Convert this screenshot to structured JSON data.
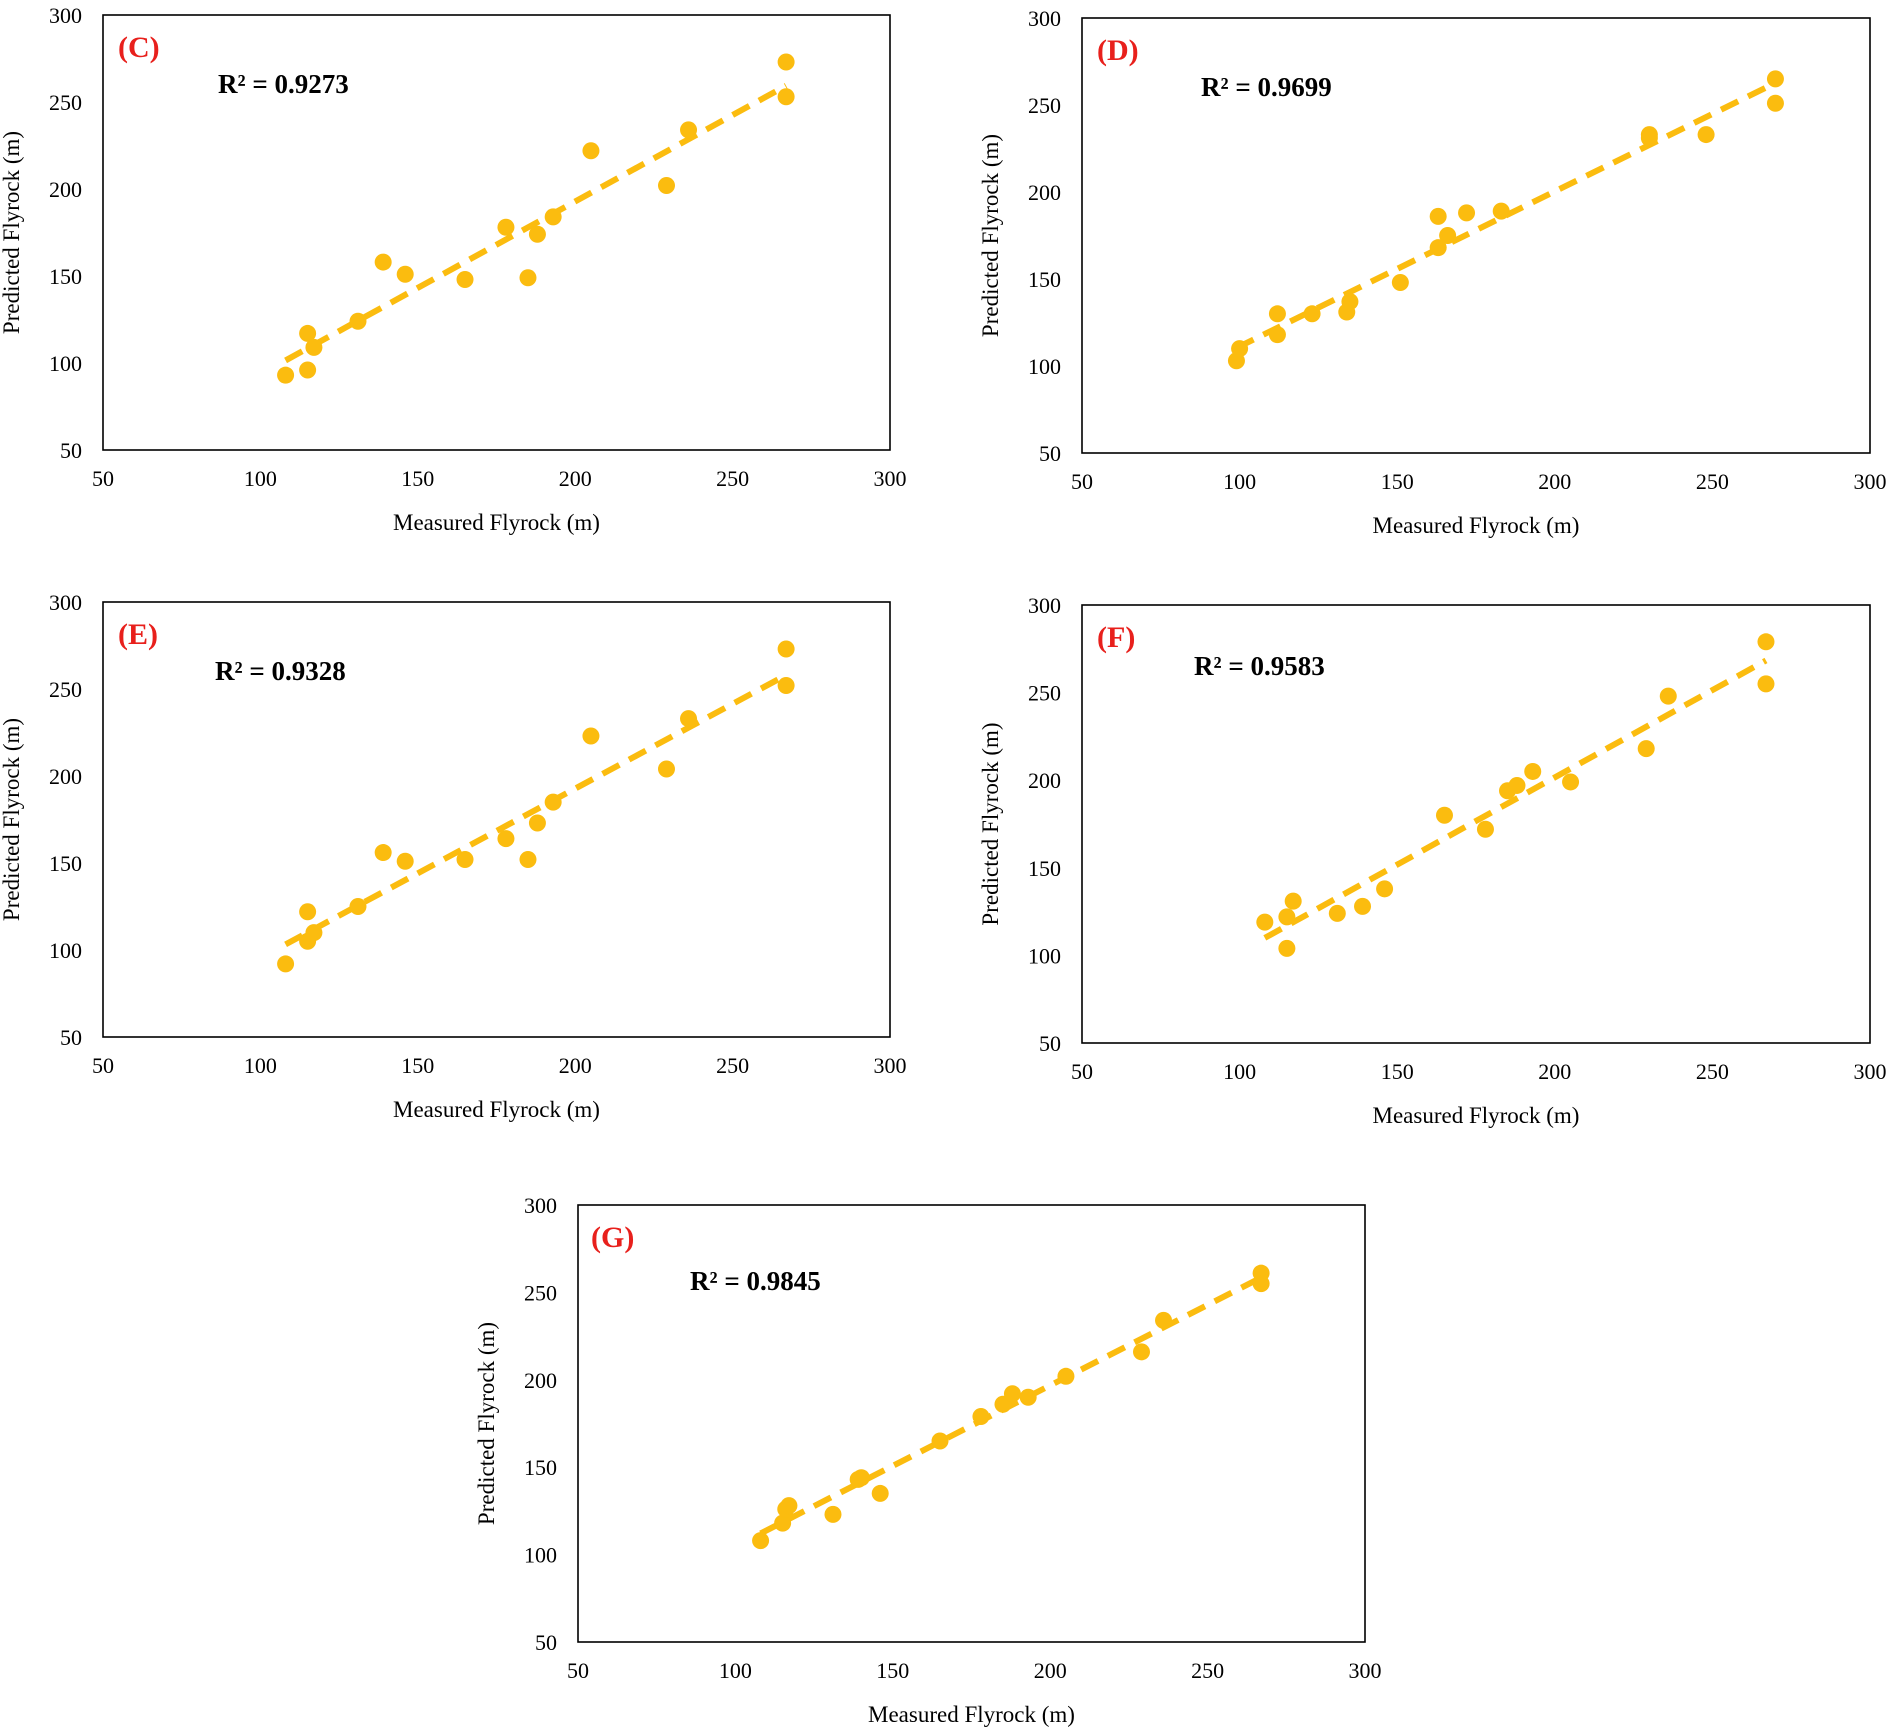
{
  "style": {
    "marker_color": "#fbbc0f",
    "trend_color": "#fbbc0f",
    "panel_label_color": "#e8201c"
  },
  "chart_data": [
    {
      "type": "scatter",
      "panel_label": "(C)",
      "r2": "R² = 0.9273",
      "xlabel": "Measured Flyrock (m)",
      "ylabel": "Predicted Flyrock (m)",
      "xlim": [
        50,
        300
      ],
      "ylim": [
        50,
        300
      ],
      "xticks": [
        "50",
        "100",
        "150",
        "200",
        "250",
        "300"
      ],
      "yticks": [
        "50",
        "100",
        "150",
        "200",
        "250",
        "300"
      ],
      "grid": false,
      "trendline": "dashed linear",
      "points": [
        [
          108,
          93
        ],
        [
          115,
          117
        ],
        [
          115,
          96
        ],
        [
          117,
          109
        ],
        [
          131,
          124
        ],
        [
          139,
          158
        ],
        [
          146,
          151
        ],
        [
          165,
          148
        ],
        [
          178,
          178
        ],
        [
          185,
          149
        ],
        [
          188,
          174
        ],
        [
          193,
          184
        ],
        [
          205,
          222
        ],
        [
          229,
          202
        ],
        [
          236,
          234
        ],
        [
          267,
          273
        ],
        [
          267,
          253
        ]
      ]
    },
    {
      "type": "scatter",
      "panel_label": "(D)",
      "r2": "R² = 0.9699",
      "xlabel": "Measured Flyrock (m)",
      "ylabel": "Predicted Flyrock (m)",
      "xlim": [
        50,
        300
      ],
      "ylim": [
        50,
        300
      ],
      "xticks": [
        "50",
        "100",
        "150",
        "200",
        "250",
        "300"
      ],
      "yticks": [
        "50",
        "100",
        "150",
        "200",
        "250",
        "300"
      ],
      "grid": false,
      "trendline": "dashed linear",
      "points": [
        [
          99,
          103
        ],
        [
          100,
          110
        ],
        [
          112,
          118
        ],
        [
          112,
          130
        ],
        [
          123,
          130
        ],
        [
          134,
          131
        ],
        [
          135,
          137
        ],
        [
          151,
          148
        ],
        [
          163,
          168
        ],
        [
          163,
          186
        ],
        [
          166,
          175
        ],
        [
          172,
          188
        ],
        [
          183,
          189
        ],
        [
          230,
          233
        ],
        [
          230,
          231
        ],
        [
          248,
          233
        ],
        [
          270,
          265
        ],
        [
          270,
          251
        ]
      ]
    },
    {
      "type": "scatter",
      "panel_label": "(E)",
      "r2": "R² = 0.9328",
      "xlabel": "Measured Flyrock (m)",
      "ylabel": "Predicted Flyrock (m)",
      "xlim": [
        50,
        300
      ],
      "ylim": [
        50,
        300
      ],
      "xticks": [
        "50",
        "100",
        "150",
        "200",
        "250",
        "300"
      ],
      "yticks": [
        "50",
        "100",
        "150",
        "200",
        "250",
        "300"
      ],
      "grid": false,
      "trendline": "dashed linear",
      "points": [
        [
          108,
          92
        ],
        [
          115,
          122
        ],
        [
          115,
          105
        ],
        [
          117,
          110
        ],
        [
          131,
          125
        ],
        [
          139,
          156
        ],
        [
          146,
          151
        ],
        [
          165,
          152
        ],
        [
          178,
          164
        ],
        [
          185,
          152
        ],
        [
          188,
          173
        ],
        [
          193,
          185
        ],
        [
          205,
          223
        ],
        [
          229,
          204
        ],
        [
          236,
          233
        ],
        [
          267,
          273
        ],
        [
          267,
          252
        ]
      ]
    },
    {
      "type": "scatter",
      "panel_label": "(F)",
      "r2": "R² = 0.9583",
      "xlabel": "Measured Flyrock (m)",
      "ylabel": "Predicted Flyrock (m)",
      "xlim": [
        50,
        300
      ],
      "ylim": [
        50,
        300
      ],
      "xticks": [
        "50",
        "100",
        "150",
        "200",
        "250",
        "300"
      ],
      "yticks": [
        "50",
        "100",
        "150",
        "200",
        "250",
        "300"
      ],
      "grid": false,
      "trendline": "dashed linear",
      "points": [
        [
          108,
          119
        ],
        [
          115,
          122
        ],
        [
          115,
          104
        ],
        [
          117,
          131
        ],
        [
          131,
          124
        ],
        [
          139,
          128
        ],
        [
          146,
          138
        ],
        [
          165,
          180
        ],
        [
          178,
          172
        ],
        [
          185,
          194
        ],
        [
          188,
          197
        ],
        [
          193,
          205
        ],
        [
          205,
          199
        ],
        [
          229,
          218
        ],
        [
          236,
          248
        ],
        [
          267,
          279
        ],
        [
          267,
          255
        ]
      ]
    },
    {
      "type": "scatter",
      "panel_label": "(G)",
      "r2": "R² = 0.9845",
      "xlabel": "Measured Flyrock (m)",
      "ylabel": "Predicted Flyrock (m)",
      "xlim": [
        50,
        300
      ],
      "ylim": [
        50,
        300
      ],
      "xticks": [
        "50",
        "100",
        "150",
        "200",
        "250",
        "300"
      ],
      "yticks": [
        "50",
        "100",
        "150",
        "200",
        "250",
        "300"
      ],
      "grid": false,
      "trendline": "dashed linear",
      "points": [
        [
          108,
          108
        ],
        [
          115,
          118
        ],
        [
          116,
          126
        ],
        [
          117,
          128
        ],
        [
          131,
          123
        ],
        [
          139,
          143
        ],
        [
          140,
          144
        ],
        [
          146,
          135
        ],
        [
          165,
          165
        ],
        [
          178,
          179
        ],
        [
          185,
          186
        ],
        [
          188,
          192
        ],
        [
          193,
          190
        ],
        [
          205,
          202
        ],
        [
          229,
          216
        ],
        [
          236,
          234
        ],
        [
          267,
          261
        ],
        [
          267,
          255
        ]
      ]
    }
  ]
}
